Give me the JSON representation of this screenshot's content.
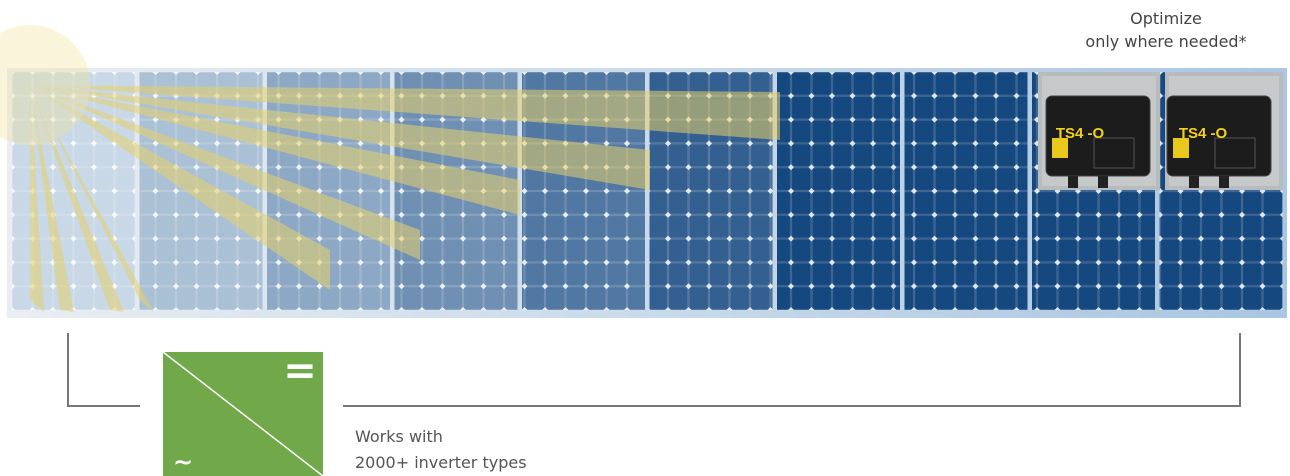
{
  "header": {
    "lines": [
      "Optimize",
      "only where needed*"
    ]
  },
  "optimizers": [
    {
      "label": "TS4 -O"
    },
    {
      "label": "TS4 -O"
    }
  ],
  "inverter": {
    "dc_symbol": "=",
    "ac_symbol": "~"
  },
  "caption": {
    "lines": [
      "Works with",
      "2000+ inverter types"
    ]
  }
}
